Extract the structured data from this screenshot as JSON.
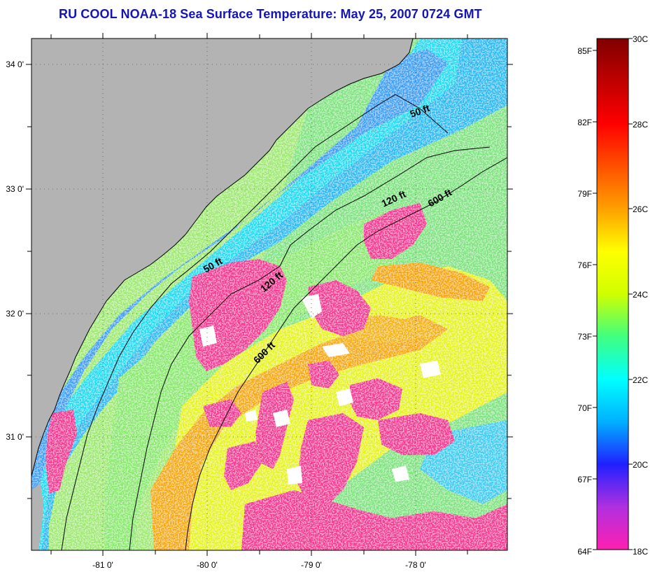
{
  "map": {
    "title": "RU COOL  NOAA-18  Sea Surface Temperature:  May 25, 2007 0724 GMT",
    "longitude_labels": [
      "-81 0'",
      "-80 0'",
      "-79 0'",
      "-78 0'"
    ],
    "latitude_labels": [
      "34 0'",
      "33 0'",
      "32 0'",
      "31 0'"
    ],
    "isobath_labels": [
      "50 ft",
      "120 ft",
      "600 ft",
      "50 ft",
      "120 ft",
      "600 ft"
    ],
    "colors": {
      "land": "#b3b3b3",
      "cloud_mask": "#ffffff",
      "coastline": "#000000",
      "title": "#1515b5"
    }
  },
  "colorbar": {
    "celsius_labels": [
      "30C",
      "28C",
      "26C",
      "24C",
      "22C",
      "20C",
      "18C"
    ],
    "fahrenheit_labels": [
      "85F",
      "82F",
      "79F",
      "76F",
      "73F",
      "70F",
      "67F",
      "64F"
    ],
    "gradient_stops": [
      "#ff1fb0",
      "#b030e0",
      "#2020ff",
      "#00b0ff",
      "#00ffff",
      "#40ff80",
      "#d0ff00",
      "#ffff00",
      "#ffa000",
      "#ff5000",
      "#ff0000",
      "#c00000",
      "#800000"
    ]
  }
}
